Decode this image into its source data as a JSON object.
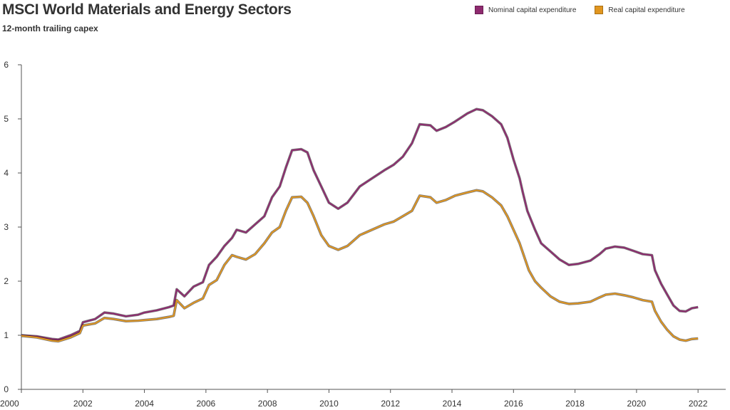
{
  "chart_data": {
    "type": "line",
    "title": "MSCI World Materials and Energy Sectors",
    "subtitle": "12-month trailing capex",
    "xlabel": "",
    "ylabel": "",
    "xlim": [
      2000,
      2022.9
    ],
    "ylim": [
      0,
      6
    ],
    "x_ticks": [
      2000,
      2002,
      2004,
      2006,
      2008,
      2010,
      2012,
      2014,
      2016,
      2018,
      2020,
      2022
    ],
    "y_ticks": [
      0,
      1,
      2,
      3,
      4,
      5,
      6
    ],
    "grid": false,
    "legend_position": "top-right",
    "series": [
      {
        "name": "Nominal capital expenditure",
        "color": "#8e2a6f",
        "points": [
          [
            2000.0,
            1.0
          ],
          [
            2000.5,
            0.98
          ],
          [
            2001.0,
            0.93
          ],
          [
            2001.2,
            0.92
          ],
          [
            2001.6,
            1.0
          ],
          [
            2001.9,
            1.08
          ],
          [
            2002.0,
            1.24
          ],
          [
            2002.4,
            1.3
          ],
          [
            2002.7,
            1.42
          ],
          [
            2003.0,
            1.4
          ],
          [
            2003.4,
            1.35
          ],
          [
            2003.8,
            1.38
          ],
          [
            2004.0,
            1.42
          ],
          [
            2004.4,
            1.46
          ],
          [
            2004.8,
            1.52
          ],
          [
            2004.95,
            1.55
          ],
          [
            2005.05,
            1.85
          ],
          [
            2005.3,
            1.72
          ],
          [
            2005.6,
            1.9
          ],
          [
            2005.9,
            1.98
          ],
          [
            2006.1,
            2.3
          ],
          [
            2006.35,
            2.45
          ],
          [
            2006.6,
            2.65
          ],
          [
            2006.85,
            2.8
          ],
          [
            2007.0,
            2.95
          ],
          [
            2007.3,
            2.9
          ],
          [
            2007.6,
            3.05
          ],
          [
            2007.9,
            3.2
          ],
          [
            2008.15,
            3.55
          ],
          [
            2008.4,
            3.75
          ],
          [
            2008.6,
            4.1
          ],
          [
            2008.8,
            4.42
          ],
          [
            2009.1,
            4.44
          ],
          [
            2009.3,
            4.38
          ],
          [
            2009.5,
            4.05
          ],
          [
            2009.75,
            3.75
          ],
          [
            2010.0,
            3.45
          ],
          [
            2010.3,
            3.34
          ],
          [
            2010.6,
            3.45
          ],
          [
            2010.8,
            3.6
          ],
          [
            2011.0,
            3.75
          ],
          [
            2011.4,
            3.9
          ],
          [
            2011.8,
            4.05
          ],
          [
            2012.1,
            4.15
          ],
          [
            2012.4,
            4.3
          ],
          [
            2012.7,
            4.55
          ],
          [
            2012.95,
            4.9
          ],
          [
            2013.3,
            4.88
          ],
          [
            2013.5,
            4.78
          ],
          [
            2013.8,
            4.85
          ],
          [
            2014.1,
            4.95
          ],
          [
            2014.5,
            5.1
          ],
          [
            2014.8,
            5.18
          ],
          [
            2015.0,
            5.16
          ],
          [
            2015.3,
            5.05
          ],
          [
            2015.6,
            4.9
          ],
          [
            2015.8,
            4.65
          ],
          [
            2016.0,
            4.25
          ],
          [
            2016.2,
            3.9
          ],
          [
            2016.3,
            3.65
          ],
          [
            2016.45,
            3.3
          ],
          [
            2016.7,
            2.95
          ],
          [
            2016.9,
            2.7
          ],
          [
            2017.2,
            2.55
          ],
          [
            2017.5,
            2.4
          ],
          [
            2017.8,
            2.3
          ],
          [
            2018.1,
            2.32
          ],
          [
            2018.5,
            2.38
          ],
          [
            2018.8,
            2.5
          ],
          [
            2019.0,
            2.6
          ],
          [
            2019.3,
            2.64
          ],
          [
            2019.6,
            2.62
          ],
          [
            2019.9,
            2.56
          ],
          [
            2020.2,
            2.5
          ],
          [
            2020.5,
            2.48
          ],
          [
            2020.6,
            2.2
          ],
          [
            2020.8,
            1.95
          ],
          [
            2021.0,
            1.75
          ],
          [
            2021.2,
            1.55
          ],
          [
            2021.4,
            1.45
          ],
          [
            2021.6,
            1.44
          ],
          [
            2021.8,
            1.5
          ],
          [
            2022.0,
            1.52
          ]
        ]
      },
      {
        "name": "Real capital expenditure",
        "color": "#e1961f",
        "points": [
          [
            2000.0,
            0.99
          ],
          [
            2000.5,
            0.96
          ],
          [
            2001.0,
            0.9
          ],
          [
            2001.2,
            0.89
          ],
          [
            2001.6,
            0.96
          ],
          [
            2001.9,
            1.04
          ],
          [
            2002.0,
            1.18
          ],
          [
            2002.4,
            1.22
          ],
          [
            2002.7,
            1.32
          ],
          [
            2003.0,
            1.3
          ],
          [
            2003.4,
            1.26
          ],
          [
            2003.8,
            1.27
          ],
          [
            2004.0,
            1.28
          ],
          [
            2004.4,
            1.3
          ],
          [
            2004.8,
            1.34
          ],
          [
            2004.95,
            1.36
          ],
          [
            2005.05,
            1.65
          ],
          [
            2005.3,
            1.5
          ],
          [
            2005.6,
            1.6
          ],
          [
            2005.9,
            1.68
          ],
          [
            2006.1,
            1.93
          ],
          [
            2006.35,
            2.02
          ],
          [
            2006.6,
            2.3
          ],
          [
            2006.85,
            2.48
          ],
          [
            2007.0,
            2.45
          ],
          [
            2007.3,
            2.4
          ],
          [
            2007.6,
            2.5
          ],
          [
            2007.9,
            2.7
          ],
          [
            2008.15,
            2.9
          ],
          [
            2008.4,
            3.0
          ],
          [
            2008.6,
            3.3
          ],
          [
            2008.8,
            3.55
          ],
          [
            2009.1,
            3.56
          ],
          [
            2009.3,
            3.45
          ],
          [
            2009.5,
            3.2
          ],
          [
            2009.75,
            2.85
          ],
          [
            2010.0,
            2.65
          ],
          [
            2010.3,
            2.58
          ],
          [
            2010.6,
            2.65
          ],
          [
            2010.8,
            2.75
          ],
          [
            2011.0,
            2.85
          ],
          [
            2011.4,
            2.95
          ],
          [
            2011.8,
            3.05
          ],
          [
            2012.1,
            3.1
          ],
          [
            2012.4,
            3.2
          ],
          [
            2012.7,
            3.3
          ],
          [
            2012.95,
            3.58
          ],
          [
            2013.3,
            3.55
          ],
          [
            2013.5,
            3.45
          ],
          [
            2013.8,
            3.5
          ],
          [
            2014.1,
            3.58
          ],
          [
            2014.5,
            3.64
          ],
          [
            2014.8,
            3.68
          ],
          [
            2015.0,
            3.66
          ],
          [
            2015.3,
            3.55
          ],
          [
            2015.6,
            3.4
          ],
          [
            2015.8,
            3.2
          ],
          [
            2016.0,
            2.95
          ],
          [
            2016.2,
            2.7
          ],
          [
            2016.35,
            2.45
          ],
          [
            2016.5,
            2.2
          ],
          [
            2016.7,
            2.0
          ],
          [
            2016.9,
            1.88
          ],
          [
            2017.2,
            1.72
          ],
          [
            2017.5,
            1.62
          ],
          [
            2017.8,
            1.58
          ],
          [
            2018.1,
            1.59
          ],
          [
            2018.5,
            1.62
          ],
          [
            2018.8,
            1.7
          ],
          [
            2019.0,
            1.75
          ],
          [
            2019.3,
            1.77
          ],
          [
            2019.6,
            1.74
          ],
          [
            2019.9,
            1.7
          ],
          [
            2020.2,
            1.65
          ],
          [
            2020.5,
            1.62
          ],
          [
            2020.6,
            1.45
          ],
          [
            2020.8,
            1.25
          ],
          [
            2021.0,
            1.1
          ],
          [
            2021.2,
            0.98
          ],
          [
            2021.4,
            0.92
          ],
          [
            2021.6,
            0.9
          ],
          [
            2021.8,
            0.93
          ],
          [
            2022.0,
            0.94
          ]
        ]
      }
    ]
  }
}
